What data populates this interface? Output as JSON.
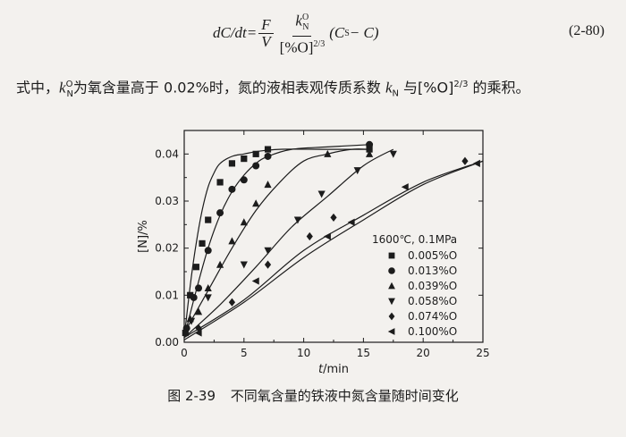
{
  "equation": {
    "lhs": "dC/dt=",
    "frac1_num": "F",
    "frac1_den": "V",
    "frac2_num_base": "k",
    "frac2_num_sub": "N",
    "frac2_num_sup": "O",
    "frac2_den": "[%O]",
    "frac2_den_sup": "2/3",
    "paren": "(C",
    "paren_sub": "S",
    "paren_end": " − C)",
    "number": "(2-80)"
  },
  "paragraph": {
    "part1": "式中，",
    "k_base": "k",
    "k_sup": "O",
    "k_sub": "N",
    "part2": "为氧含量高于 0.02%时，氮的液相表观传质系数 ",
    "kn_base": "k",
    "kn_sub": "N",
    "part3": " 与[%O]",
    "part3_sup": "2/3",
    "part4": " 的乘积。"
  },
  "caption": {
    "label": "图 2-39",
    "text": "不同氧含量的铁液中氮含量随时间变化"
  },
  "chart_data": {
    "type": "scatter",
    "xlabel": "t/min",
    "ylabel": "[N]/%",
    "xlim": [
      0,
      25
    ],
    "ylim": [
      0,
      0.045
    ],
    "xticks": [
      "0",
      "5",
      "10",
      "15",
      "20",
      "25"
    ],
    "yticks": [
      "0.00",
      "0.01",
      "0.02",
      "0.03",
      "0.04"
    ],
    "legend_title": "1600℃, 0.1MPa",
    "legend_position": "right",
    "series": [
      {
        "name": "0.005%O",
        "marker": "square",
        "points": [
          [
            0.1,
            0.002
          ],
          [
            0.5,
            0.01
          ],
          [
            1.0,
            0.016
          ],
          [
            1.5,
            0.021
          ],
          [
            2.0,
            0.026
          ],
          [
            3.0,
            0.034
          ],
          [
            4.0,
            0.038
          ],
          [
            5.0,
            0.039
          ],
          [
            6.0,
            0.04
          ],
          [
            7.0,
            0.041
          ],
          [
            15.5,
            0.041
          ]
        ],
        "curve": [
          [
            0,
            0.001
          ],
          [
            0.5,
            0.012
          ],
          [
            1.0,
            0.021
          ],
          [
            1.5,
            0.028
          ],
          [
            2.0,
            0.033
          ],
          [
            2.5,
            0.036
          ],
          [
            3.0,
            0.038
          ],
          [
            4.0,
            0.0395
          ],
          [
            5.0,
            0.04
          ],
          [
            6.0,
            0.0405
          ],
          [
            8.0,
            0.041
          ],
          [
            12.0,
            0.041
          ],
          [
            15.5,
            0.041
          ]
        ]
      },
      {
        "name": "0.013%O",
        "marker": "circle",
        "points": [
          [
            0.2,
            0.003
          ],
          [
            0.8,
            0.0095
          ],
          [
            1.2,
            0.0115
          ],
          [
            2.0,
            0.0195
          ],
          [
            3.0,
            0.0275
          ],
          [
            4.0,
            0.0325
          ],
          [
            5.0,
            0.0345
          ],
          [
            6.0,
            0.0375
          ],
          [
            7.0,
            0.0395
          ],
          [
            15.5,
            0.042
          ]
        ],
        "curve": [
          [
            0,
            0.001
          ],
          [
            1.0,
            0.011
          ],
          [
            2.0,
            0.02
          ],
          [
            3.0,
            0.027
          ],
          [
            4.0,
            0.032
          ],
          [
            5.0,
            0.0355
          ],
          [
            6.0,
            0.038
          ],
          [
            7.0,
            0.0395
          ],
          [
            9.0,
            0.041
          ],
          [
            12.0,
            0.0415
          ],
          [
            15.5,
            0.042
          ]
        ]
      },
      {
        "name": "0.039%O",
        "marker": "triangle-up",
        "points": [
          [
            0.5,
            0.005
          ],
          [
            1.2,
            0.0065
          ],
          [
            2.0,
            0.0115
          ],
          [
            3.0,
            0.0165
          ],
          [
            4.0,
            0.0215
          ],
          [
            5.0,
            0.0255
          ],
          [
            6.0,
            0.0295
          ],
          [
            7.0,
            0.0335
          ],
          [
            12.0,
            0.04
          ],
          [
            15.5,
            0.04
          ]
        ],
        "curve": [
          [
            0,
            0.002
          ],
          [
            2.0,
            0.011
          ],
          [
            4.0,
            0.02
          ],
          [
            6.0,
            0.028
          ],
          [
            8.0,
            0.034
          ],
          [
            10.0,
            0.0385
          ],
          [
            12.0,
            0.04
          ],
          [
            14.0,
            0.041
          ],
          [
            15.5,
            0.041
          ]
        ]
      },
      {
        "name": "0.058%O",
        "marker": "triangle-down",
        "points": [
          [
            0.6,
            0.0045
          ],
          [
            2.0,
            0.0095
          ],
          [
            5.0,
            0.0165
          ],
          [
            7.0,
            0.0195
          ],
          [
            9.5,
            0.026
          ],
          [
            11.5,
            0.0315
          ],
          [
            14.5,
            0.0365
          ],
          [
            17.5,
            0.04
          ]
        ],
        "curve": [
          [
            0,
            0.001
          ],
          [
            3.0,
            0.008
          ],
          [
            6.0,
            0.016
          ],
          [
            9.0,
            0.0245
          ],
          [
            12.0,
            0.031
          ],
          [
            15.0,
            0.0375
          ],
          [
            17.5,
            0.041
          ]
        ]
      },
      {
        "name": "0.074%O",
        "marker": "diamond",
        "points": [
          [
            1.2,
            0.003
          ],
          [
            4.0,
            0.0085
          ],
          [
            7.0,
            0.0165
          ],
          [
            10.5,
            0.0225
          ],
          [
            12.5,
            0.0265
          ],
          [
            23.5,
            0.0385
          ]
        ],
        "curve": [
          [
            0,
            0.001
          ],
          [
            5.0,
            0.009
          ],
          [
            10.0,
            0.0195
          ],
          [
            15.0,
            0.027
          ],
          [
            20.0,
            0.034
          ],
          [
            25.0,
            0.0385
          ]
        ]
      },
      {
        "name": "0.100%O",
        "marker": "triangle-left",
        "points": [
          [
            1.2,
            0.002
          ],
          [
            6.0,
            0.013
          ],
          [
            12.0,
            0.0225
          ],
          [
            14.0,
            0.0255
          ],
          [
            18.5,
            0.033
          ],
          [
            24.5,
            0.038
          ]
        ],
        "curve": [
          [
            0,
            0.0005
          ],
          [
            5.0,
            0.0085
          ],
          [
            10.0,
            0.018
          ],
          [
            15.0,
            0.026
          ],
          [
            20.0,
            0.0335
          ],
          [
            25.0,
            0.0385
          ]
        ]
      }
    ]
  }
}
